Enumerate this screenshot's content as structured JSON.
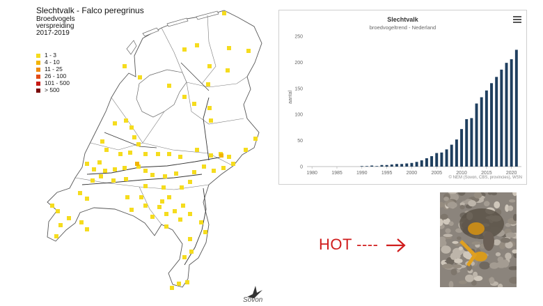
{
  "map": {
    "title": "Slechtvalk - Falco peregrinus",
    "subtitle_lines": [
      "Broedvogels",
      "verspreiding",
      "2017-2019"
    ],
    "legend": [
      {
        "label": "1 - 3",
        "color": "#f5dc1e"
      },
      {
        "label": "4 - 10",
        "color": "#f2b400"
      },
      {
        "label": "11 - 25",
        "color": "#ee8a10"
      },
      {
        "label": "26 - 100",
        "color": "#e24b17"
      },
      {
        "label": "101 - 500",
        "color": "#c71a14"
      },
      {
        "label": "> 500",
        "color": "#7a0a0a"
      }
    ],
    "logo_text": "Sovon"
  },
  "chart_data": {
    "type": "bar",
    "title": "Slechtvalk",
    "subtitle": "broedvogeltrend - Nederland",
    "ylabel": "aantal",
    "xlabel": "",
    "ylim": [
      0,
      250
    ],
    "yticks": [
      0,
      50,
      100,
      150,
      200,
      250
    ],
    "xticks": [
      1980,
      1985,
      1990,
      1995,
      2000,
      2005,
      2010,
      2015,
      2020
    ],
    "xlim": [
      1979,
      2022
    ],
    "bar_color": "#1f3f5f",
    "x": [
      1990,
      1991,
      1992,
      1993,
      1994,
      1995,
      1996,
      1997,
      1998,
      1999,
      2000,
      2001,
      2002,
      2003,
      2004,
      2005,
      2006,
      2007,
      2008,
      2009,
      2010,
      2011,
      2012,
      2013,
      2014,
      2015,
      2016,
      2017,
      2018,
      2019,
      2020,
      2021
    ],
    "values": [
      1,
      1,
      2,
      1,
      3,
      3,
      4,
      5,
      5,
      6,
      7,
      9,
      12,
      16,
      20,
      26,
      27,
      33,
      42,
      52,
      72,
      91,
      93,
      121,
      133,
      146,
      160,
      172,
      186,
      199,
      206,
      224
    ],
    "credits": "© NEM (Sovon, CBS, provincies), WSN",
    "grid": false,
    "legend": "none"
  },
  "annotation": {
    "text": "HOT ----",
    "color": "#d01c1c"
  },
  "icons": {
    "menu": "hamburger-menu-icon",
    "arrow": "arrow-right-icon",
    "logo": "sovon-bird-logo"
  }
}
